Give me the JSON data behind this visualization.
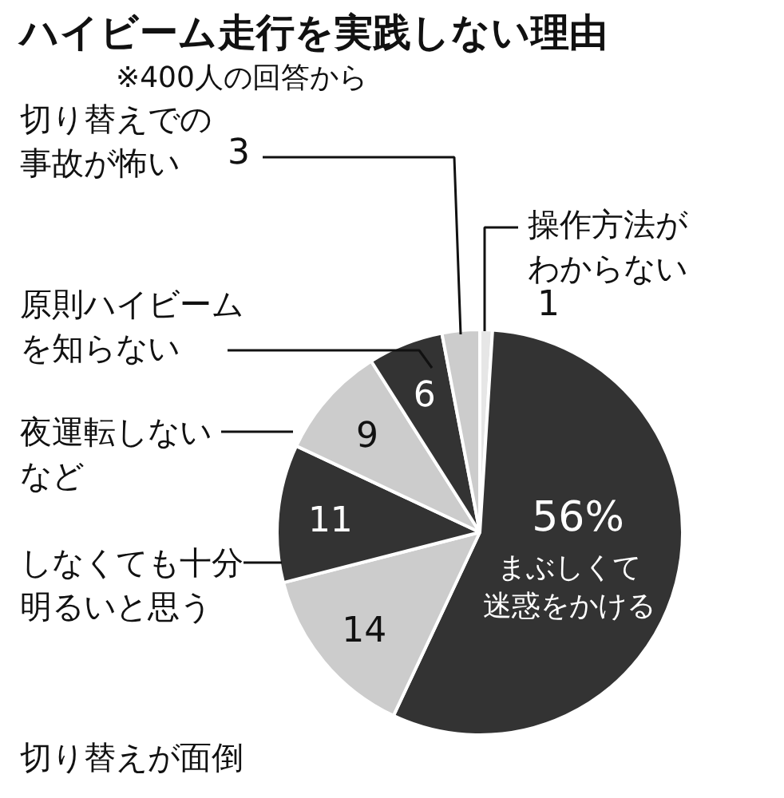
{
  "chart_data": {
    "type": "pie",
    "title": "ハイビーム走行を実践しない理由",
    "subtitle": "※400人の回答から",
    "categories": [
      "操作方法がわからない",
      "まぶしくて迷惑をかける",
      "切り替えが面倒",
      "しなくても十分明るいと思う",
      "夜運転しないなど",
      "原則ハイビームを知らない",
      "切り替えでの事故が怖い"
    ],
    "values": [
      1,
      56,
      14,
      11,
      9,
      6,
      3
    ],
    "colors": [
      "#e6e6e6",
      "#333333",
      "#cccccc",
      "#333333",
      "#cccccc",
      "#333333",
      "#cccccc"
    ],
    "value_labels": [
      "1",
      "56%",
      "14",
      "11",
      "9",
      "6",
      "3"
    ]
  }
}
